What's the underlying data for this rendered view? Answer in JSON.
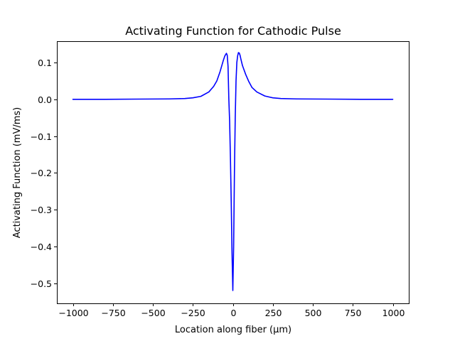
{
  "chart_data": {
    "type": "line",
    "title": "Activating Function for Cathodic Pulse",
    "xlabel": "Location along fiber (µm)",
    "ylabel": "Activating Function (mV/ms)",
    "xlim": [
      -1100,
      1100
    ],
    "ylim": [
      -0.555,
      0.158
    ],
    "grid": false,
    "xticks": [
      -1000,
      -750,
      -500,
      -250,
      0,
      250,
      500,
      750,
      1000
    ],
    "xtick_labels": [
      "−1000",
      "−750",
      "−500",
      "−250",
      "0",
      "250",
      "500",
      "750",
      "1000"
    ],
    "yticks": [
      -0.5,
      -0.4,
      -0.3,
      -0.2,
      -0.1,
      0.0,
      0.1
    ],
    "ytick_labels": [
      "−0.5",
      "−0.4",
      "−0.3",
      "−0.2",
      "−0.1",
      "0.0",
      "0.1"
    ],
    "series": [
      {
        "color": "#0000ff",
        "x": [
          -1000,
          -800,
          -600,
          -400,
          -300,
          -250,
          -200,
          -150,
          -120,
          -100,
          -80,
          -60,
          -50,
          -40,
          -35,
          -30,
          -25,
          -20,
          -15,
          -10,
          -5,
          0,
          5,
          10,
          15,
          20,
          25,
          30,
          35,
          40,
          45,
          50,
          60,
          80,
          100,
          120,
          150,
          200,
          250,
          300,
          400,
          600,
          800,
          1000
        ],
        "y": [
          0.0,
          0.0,
          0.0005,
          0.001,
          0.002,
          0.004,
          0.008,
          0.02,
          0.035,
          0.05,
          0.075,
          0.105,
          0.118,
          0.125,
          0.12,
          0.09,
          0.0,
          -0.06,
          -0.16,
          -0.28,
          -0.42,
          -0.52,
          -0.4,
          -0.2,
          -0.05,
          0.05,
          0.1,
          0.118,
          0.127,
          0.126,
          0.12,
          0.11,
          0.092,
          0.068,
          0.048,
          0.032,
          0.02,
          0.009,
          0.004,
          0.002,
          0.001,
          0.0005,
          0.0,
          0.0
        ]
      }
    ]
  }
}
